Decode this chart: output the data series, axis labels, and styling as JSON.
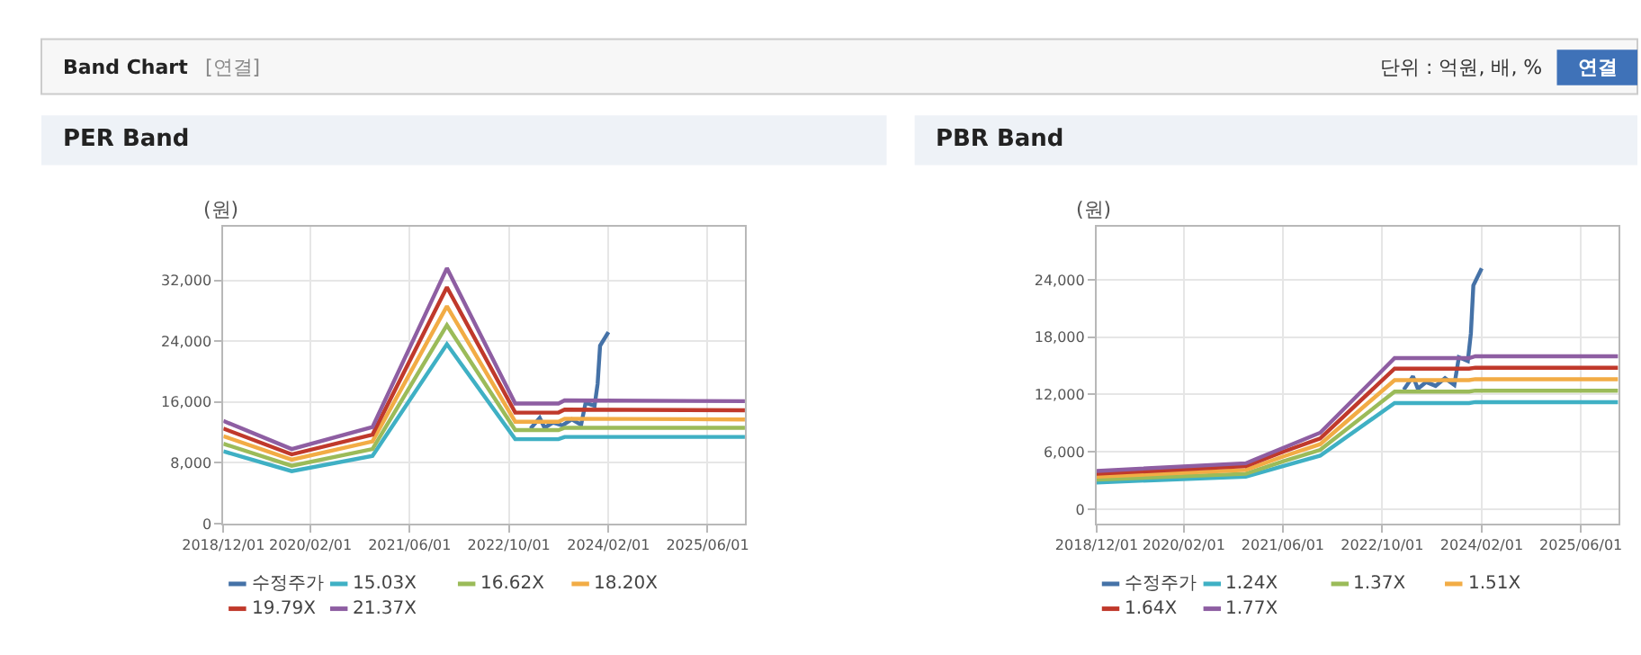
{
  "chart_data": [
    {
      "type": "line",
      "title": "PER Band",
      "ylabel": "(원)",
      "legend": "bottom",
      "grid": true,
      "marker": "none",
      "line_style": "solid",
      "annotations": [
        "Band Chart",
        "[연결]",
        "단위 : 억원, 배, %",
        "연결"
      ],
      "xlim": [
        "2018-12-01",
        "2025-12-01"
      ],
      "xticks": [
        {
          "value": "2018-12-01",
          "label": "2018/12/01"
        },
        {
          "value": "2020-02-01",
          "label": "2020/02/01"
        },
        {
          "value": "2021-06-01",
          "label": "2021/06/01"
        },
        {
          "value": "2022-10-01",
          "label": "2022/10/01"
        },
        {
          "value": "2024-02-01",
          "label": "2024/02/01"
        },
        {
          "value": "2025-06-01",
          "label": "2025/06/01"
        }
      ],
      "ylim": [
        0,
        39000
      ],
      "yticks": [
        0,
        {
          "value": 8000,
          "label": "8,000"
        },
        {
          "value": 16000,
          "label": "16,000"
        },
        {
          "value": 24000,
          "label": "24,000"
        },
        {
          "value": 32000,
          "label": "32,000"
        }
      ],
      "series": [
        {
          "name": "수정주가",
          "color": "#4572a7",
          "x": [
            "2023-01-15",
            "2023-03-01",
            "2023-03-25",
            "2023-05-05",
            "2023-06-20",
            "2023-08-05",
            "2023-09-20",
            "2023-10-12",
            "2023-11-25",
            "2023-12-10",
            "2023-12-22",
            "2024-02-01"
          ],
          "values": [
            12500,
            13900,
            12600,
            13300,
            12900,
            13700,
            13000,
            15900,
            15500,
            18400,
            23400,
            25200
          ]
        },
        {
          "name": "15.03X",
          "color": "#3fb0c4",
          "x": [
            "2018-12-01",
            "2019-11-01",
            "2020-12-01",
            "2021-12-01",
            "2022-11-01",
            "2023-06-01",
            "2023-07-01",
            "2025-12-01"
          ],
          "values": [
            9500,
            6900,
            8900,
            23600,
            11100,
            11100,
            11400,
            11400
          ]
        },
        {
          "name": "16.62X",
          "color": "#9bbb59",
          "x": [
            "2018-12-01",
            "2019-11-01",
            "2020-12-01",
            "2021-12-01",
            "2022-11-01",
            "2023-06-01",
            "2023-07-01",
            "2025-12-01"
          ],
          "values": [
            10500,
            7600,
            9800,
            26100,
            12300,
            12300,
            12600,
            12600
          ]
        },
        {
          "name": "18.20X",
          "color": "#f2ac45",
          "x": [
            "2018-12-01",
            "2019-11-01",
            "2020-12-01",
            "2021-12-01",
            "2022-11-01",
            "2023-06-01",
            "2023-07-01",
            "2025-12-01"
          ],
          "values": [
            11500,
            8400,
            10800,
            28600,
            13400,
            13400,
            13800,
            13700
          ]
        },
        {
          "name": "19.79X",
          "color": "#c0392b",
          "x": [
            "2018-12-01",
            "2019-11-01",
            "2020-12-01",
            "2021-12-01",
            "2022-11-01",
            "2023-06-01",
            "2023-07-01",
            "2025-12-01"
          ],
          "values": [
            12500,
            9100,
            11700,
            31100,
            14600,
            14600,
            15000,
            14900
          ]
        },
        {
          "name": "21.37X",
          "color": "#8e5ea2",
          "x": [
            "2018-12-01",
            "2019-11-01",
            "2020-12-01",
            "2021-12-01",
            "2022-11-01",
            "2023-06-01",
            "2023-07-01",
            "2025-12-01"
          ],
          "values": [
            13500,
            9800,
            12700,
            33600,
            15800,
            15800,
            16200,
            16100
          ]
        }
      ]
    },
    {
      "type": "line",
      "title": "PBR Band",
      "ylabel": "(원)",
      "legend": "bottom",
      "grid": true,
      "marker": "none",
      "line_style": "solid",
      "xlim": [
        "2018-12-01",
        "2025-12-01"
      ],
      "xticks": [
        {
          "value": "2018-12-01",
          "label": "2018/12/01"
        },
        {
          "value": "2020-02-01",
          "label": "2020/02/01"
        },
        {
          "value": "2021-06-01",
          "label": "2021/06/01"
        },
        {
          "value": "2022-10-01",
          "label": "2022/10/01"
        },
        {
          "value": "2024-02-01",
          "label": "2024/02/01"
        },
        {
          "value": "2025-06-01",
          "label": "2025/06/01"
        }
      ],
      "ylim": [
        -1500,
        29500
      ],
      "yticks": [
        0,
        {
          "value": 6000,
          "label": "6,000"
        },
        {
          "value": 12000,
          "label": "12,000"
        },
        {
          "value": 18000,
          "label": "18,000"
        },
        {
          "value": 24000,
          "label": "24,000"
        }
      ],
      "series": [
        {
          "name": "수정주가",
          "color": "#4572a7",
          "x": [
            "2023-01-15",
            "2023-03-01",
            "2023-03-25",
            "2023-05-05",
            "2023-06-20",
            "2023-08-05",
            "2023-09-20",
            "2023-10-12",
            "2023-11-25",
            "2023-12-10",
            "2023-12-22",
            "2024-02-01"
          ],
          "values": [
            12500,
            13900,
            12600,
            13300,
            12900,
            13700,
            13000,
            15900,
            15500,
            18400,
            23400,
            25200
          ]
        },
        {
          "name": "1.24X",
          "color": "#3fb0c4",
          "x": [
            "2018-12-01",
            "2020-12-01",
            "2021-06-01",
            "2021-12-01",
            "2022-12-01",
            "2023-12-01",
            "2024-01-01",
            "2025-12-01"
          ],
          "values": [
            2800,
            3400,
            4500,
            5600,
            11100,
            11100,
            11200,
            11200
          ]
        },
        {
          "name": "1.37X",
          "color": "#9bbb59",
          "x": [
            "2018-12-01",
            "2020-12-01",
            "2021-06-01",
            "2021-12-01",
            "2022-12-01",
            "2023-12-01",
            "2024-01-01",
            "2025-12-01"
          ],
          "values": [
            3100,
            3700,
            5000,
            6200,
            12300,
            12300,
            12400,
            12400
          ]
        },
        {
          "name": "1.51X",
          "color": "#f2ac45",
          "x": [
            "2018-12-01",
            "2020-12-01",
            "2021-06-01",
            "2021-12-01",
            "2022-12-01",
            "2023-12-01",
            "2024-01-01",
            "2025-12-01"
          ],
          "values": [
            3400,
            4100,
            5500,
            6800,
            13500,
            13500,
            13600,
            13600
          ]
        },
        {
          "name": "1.64X",
          "color": "#c0392b",
          "x": [
            "2018-12-01",
            "2020-12-01",
            "2021-06-01",
            "2021-12-01",
            "2022-12-01",
            "2023-12-01",
            "2024-01-01",
            "2025-12-01"
          ],
          "values": [
            3700,
            4500,
            6000,
            7400,
            14700,
            14700,
            14800,
            14800
          ]
        },
        {
          "name": "1.77X",
          "color": "#8e5ea2",
          "x": [
            "2018-12-01",
            "2020-12-01",
            "2021-06-01",
            "2021-12-01",
            "2022-12-01",
            "2023-12-01",
            "2024-01-01",
            "2025-12-01"
          ],
          "values": [
            4000,
            4800,
            6400,
            8000,
            15800,
            15800,
            16000,
            16000
          ]
        }
      ]
    }
  ]
}
